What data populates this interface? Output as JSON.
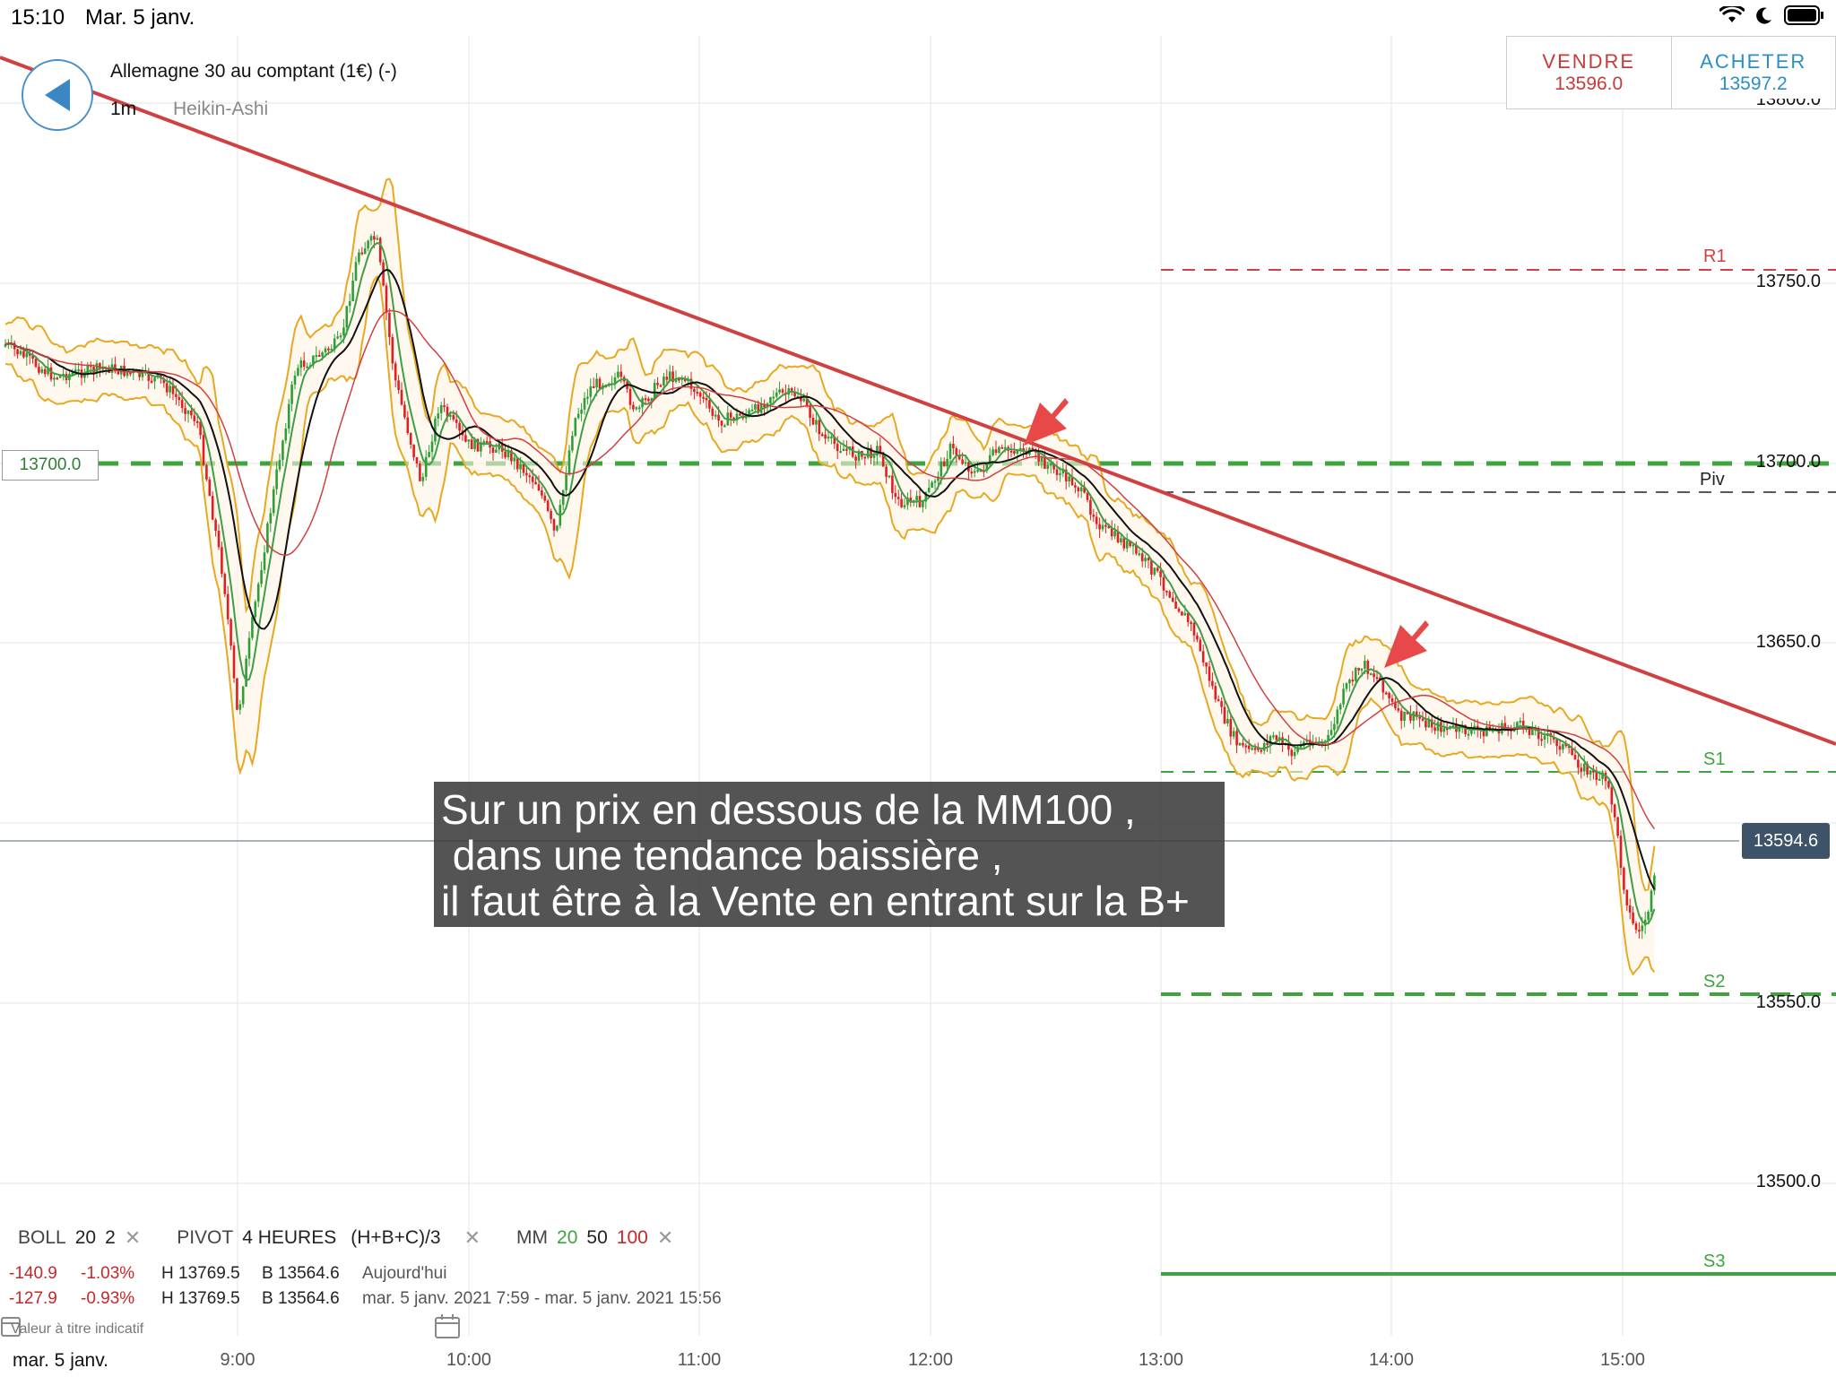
{
  "status_bar": {
    "time": "15:10",
    "date": "Mar. 5 janv."
  },
  "header": {
    "instrument": "Allemagne 30 au comptant (1€) (-)",
    "timeframe": "1m",
    "chart_type": "Heikin-Ashi"
  },
  "trade": {
    "sell_label": "VENDRE",
    "sell_price": "13596.0",
    "buy_label": "ACHETER",
    "buy_price": "13597.2"
  },
  "chart": {
    "y_ticks": [
      "13750.0",
      "13700.0",
      "13650.0",
      "13550.0",
      "13500.0"
    ],
    "y_tick_partial": "13800.0",
    "x_ticks": [
      "9:00",
      "10:00",
      "11:00",
      "12:00",
      "13:00",
      "14:00",
      "15:00"
    ],
    "levels": {
      "r1": "R1",
      "piv": "Piv",
      "s1": "S1",
      "s2": "S2",
      "s3": "S3"
    },
    "current_price": "13594.6",
    "marked_level": "13700.0",
    "annotation": [
      "Sur un prix en dessous de la MM100 ,",
      " dans une tendance baissière ,",
      "il faut être à la Vente en entrant sur la B+"
    ],
    "colors": {
      "up": "#2e9e36",
      "down": "#e02020",
      "trend": "#d04040",
      "boll": "#e8a820",
      "mm50": "#111111"
    }
  },
  "legend": {
    "boll": "BOLL",
    "boll_p1": "20",
    "boll_p2": "2",
    "pivot": "PIVOT",
    "pivot_period": "4 HEURES",
    "pivot_formula": "(H+B+C)/3",
    "mm": "MM",
    "mm_20": "20",
    "mm_50": "50",
    "mm_100": "100"
  },
  "stats": [
    {
      "chg": "-140.9",
      "pct": "-1.03%",
      "high": "H 13769.5",
      "low": "B 13564.6",
      "period": "Aujourd'hui"
    },
    {
      "chg": "-127.9",
      "pct": "-0.93%",
      "high": "H 13769.5",
      "low": "B 13564.6",
      "period": "mar. 5 janv. 2021 7:59 - mar. 5 janv. 2021 15:56"
    }
  ],
  "footer": {
    "indicative": "Valeur à titre indicatif",
    "date": "mar. 5 janv."
  }
}
